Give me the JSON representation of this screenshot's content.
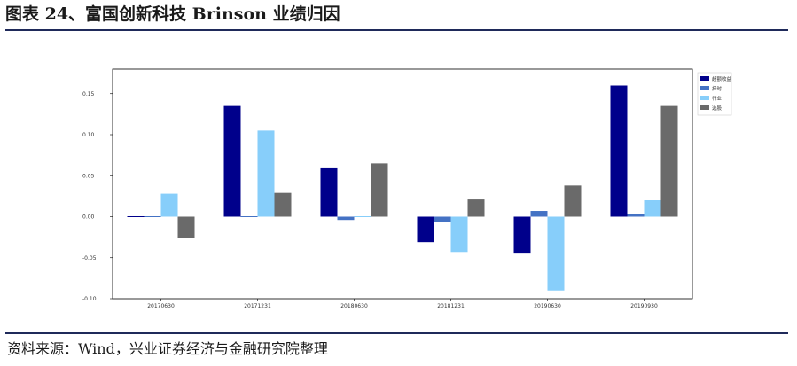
{
  "header": {
    "title": "图表 24、富国创新科技 Brinson 业绩归因"
  },
  "footer": {
    "source": "资料来源：Wind，兴业证券经济与金融研究院整理"
  },
  "chart_data": {
    "type": "bar",
    "categories": [
      "20170630",
      "20171231",
      "20180630",
      "20181231",
      "20190630",
      "20190930"
    ],
    "series": [
      {
        "name": "超额收益",
        "color": "#00008b",
        "values": [
          0.0,
          0.135,
          0.059,
          -0.031,
          -0.045,
          0.16
        ]
      },
      {
        "name": "择时",
        "color": "#4472c4",
        "values": [
          0.001,
          0.0,
          -0.004,
          -0.007,
          0.007,
          0.003
        ]
      },
      {
        "name": "行业",
        "color": "#87cefa",
        "values": [
          0.028,
          0.105,
          0.0,
          -0.043,
          -0.09,
          0.02
        ]
      },
      {
        "name": "选股",
        "color": "#6a6a6a",
        "values": [
          -0.026,
          0.029,
          0.065,
          0.021,
          0.038,
          0.135
        ]
      }
    ],
    "ylim": [
      -0.1,
      0.18
    ],
    "yticks": [
      -0.1,
      -0.05,
      0.0,
      0.05,
      0.1,
      0.15
    ],
    "ytick_labels": [
      "-0.10",
      "-0.05",
      "0.00",
      "0.05",
      "0.10",
      "0.15"
    ],
    "xlabel": "",
    "ylabel": "",
    "grid": false,
    "legend_position": "top-right"
  }
}
